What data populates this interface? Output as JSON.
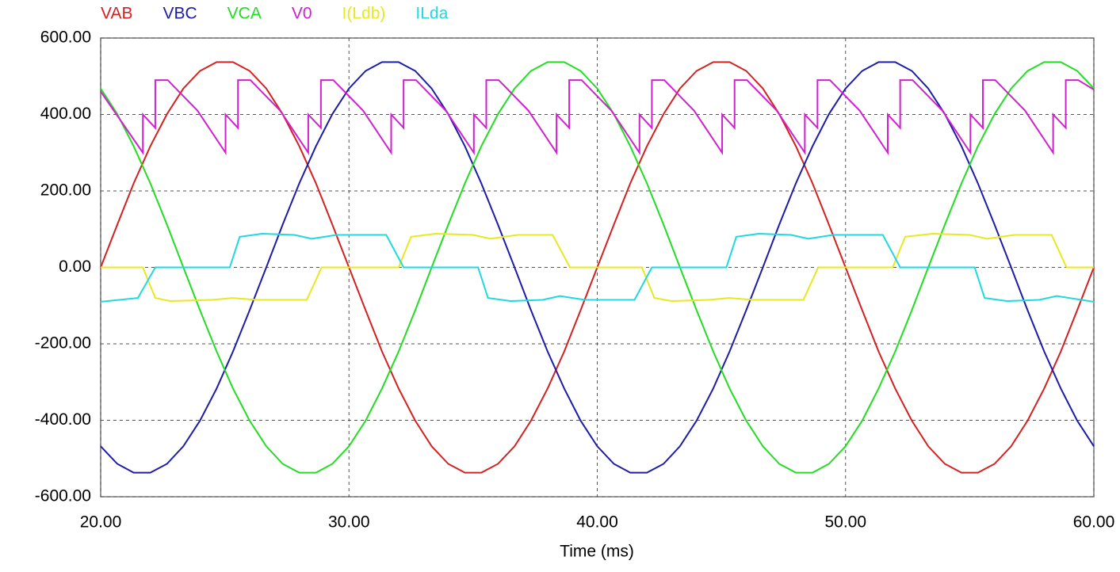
{
  "chart_data": {
    "type": "line",
    "x_label": "Time (ms)",
    "xlim": [
      20,
      60
    ],
    "ylim": [
      -600,
      600
    ],
    "xticks": [
      {
        "value": 20,
        "label": "20.00"
      },
      {
        "value": 30,
        "label": "30.00"
      },
      {
        "value": 40,
        "label": "40.00"
      },
      {
        "value": 50,
        "label": "50.00"
      },
      {
        "value": 60,
        "label": "60.00"
      }
    ],
    "yticks": [
      {
        "value": -600,
        "label": "-600.00"
      },
      {
        "value": -400,
        "label": "-400.00"
      },
      {
        "value": -200,
        "label": "-200.00"
      },
      {
        "value": 0,
        "label": "0.00"
      },
      {
        "value": 200,
        "label": "200.00"
      },
      {
        "value": 400,
        "label": "400.00"
      },
      {
        "value": 600,
        "label": "600.00"
      }
    ],
    "grid": true,
    "x": [
      20,
      20.67,
      21.33,
      22,
      22.67,
      23.33,
      24,
      24.67,
      25.33,
      26,
      26.67,
      27.33,
      28,
      28.67,
      29.33,
      30,
      30.67,
      31.33,
      32,
      32.67,
      33.33,
      34,
      34.67,
      35.33,
      36,
      36.67,
      37.33,
      38,
      38.67,
      39.33,
      40,
      40.67,
      41.33,
      42,
      42.67,
      43.33,
      44,
      44.67,
      45.33,
      46,
      46.67,
      47.33,
      48,
      48.67,
      49.33,
      50,
      50.67,
      51.33,
      52,
      52.67,
      53.33,
      54,
      54.67,
      55.33,
      56,
      56.67,
      57.33,
      58,
      58.67,
      59.33,
      60
    ],
    "series": [
      {
        "name": "VAB",
        "color": "#d42020",
        "values": [
          0,
          112,
          220,
          317,
          401,
          468,
          514,
          537,
          537,
          514,
          468,
          401,
          317,
          220,
          112,
          0,
          -112,
          -220,
          -317,
          -401,
          -468,
          -514,
          -537,
          -537,
          -514,
          -468,
          -401,
          -317,
          -220,
          -112,
          0,
          112,
          220,
          317,
          401,
          468,
          514,
          537,
          537,
          514,
          468,
          401,
          317,
          220,
          112,
          0,
          -112,
          -220,
          -317,
          -401,
          -468,
          -514,
          -537,
          -537,
          -514,
          -468,
          -401,
          -317,
          -220,
          -112,
          0
        ]
      },
      {
        "name": "VBC",
        "color": "#1c1ca8",
        "values": [
          -468,
          -514,
          -537,
          -537,
          -514,
          -468,
          -401,
          -317,
          -220,
          -112,
          0,
          112,
          220,
          317,
          401,
          468,
          514,
          537,
          537,
          514,
          468,
          401,
          317,
          220,
          112,
          0,
          -112,
          -220,
          -317,
          -401,
          -468,
          -514,
          -537,
          -537,
          -514,
          -468,
          -401,
          -317,
          -220,
          -112,
          0,
          112,
          220,
          317,
          401,
          468,
          514,
          537,
          537,
          514,
          468,
          401,
          317,
          220,
          112,
          0,
          -112,
          -220,
          -317,
          -401,
          -468
        ]
      },
      {
        "name": "VCA",
        "color": "#22dd22",
        "values": [
          468,
          401,
          317,
          220,
          112,
          0,
          -112,
          -220,
          -317,
          -401,
          -468,
          -514,
          -537,
          -537,
          -514,
          -468,
          -401,
          -317,
          -220,
          -112,
          0,
          112,
          220,
          317,
          401,
          468,
          514,
          537,
          537,
          514,
          468,
          401,
          317,
          220,
          112,
          0,
          -112,
          -220,
          -317,
          -401,
          -468,
          -514,
          -537,
          -537,
          -514,
          -468,
          -401,
          -317,
          -220,
          -112,
          0,
          112,
          220,
          317,
          401,
          468,
          514,
          537,
          537,
          514,
          468
        ]
      },
      {
        "name": "V0",
        "color": "#d020d0",
        "x": [
          20,
          21.7,
          21.7,
          22.2,
          22.2,
          22.7,
          23.9,
          25.03,
          25.03,
          25.53,
          25.53,
          26.03,
          27.23,
          28.36,
          28.36,
          28.87,
          28.87,
          29.37,
          30.57,
          31.7,
          31.7,
          32.2,
          32.2,
          32.7,
          33.9,
          35.03,
          35.03,
          35.53,
          35.53,
          36.03,
          37.23,
          38.36,
          38.36,
          38.87,
          38.87,
          39.37,
          40.57,
          41.7,
          41.7,
          42.2,
          42.2,
          42.7,
          43.9,
          45.03,
          45.03,
          45.53,
          45.53,
          46.03,
          47.23,
          48.36,
          48.36,
          48.87,
          48.87,
          49.37,
          50.57,
          51.7,
          51.7,
          52.2,
          52.2,
          52.7,
          53.9,
          55.03,
          55.03,
          55.53,
          55.53,
          56.03,
          57.23,
          58.36,
          58.36,
          58.87,
          58.87,
          59.37,
          60
        ],
        "values": [
          460,
          300,
          400,
          365,
          490,
          490,
          410,
          300,
          400,
          365,
          490,
          490,
          410,
          300,
          400,
          365,
          490,
          490,
          410,
          300,
          400,
          365,
          490,
          490,
          410,
          300,
          400,
          365,
          490,
          490,
          410,
          300,
          400,
          365,
          490,
          490,
          410,
          300,
          400,
          365,
          490,
          490,
          410,
          300,
          400,
          365,
          490,
          490,
          410,
          300,
          400,
          365,
          490,
          490,
          410,
          300,
          400,
          365,
          490,
          490,
          410,
          300,
          400,
          365,
          490,
          490,
          410,
          300,
          400,
          365,
          490,
          490,
          465
        ]
      },
      {
        "name": "I(Ldb)",
        "color": "#e8e820",
        "x": [
          20,
          21.7,
          22.2,
          22.8,
          24.5,
          25.3,
          26.3,
          28.3,
          28.9,
          32,
          32.5,
          33.5,
          35,
          35.7,
          36.8,
          38.2,
          38.9,
          41.8,
          42.3,
          43,
          44.5,
          45.3,
          46.3,
          48.3,
          48.9,
          51.9,
          52.4,
          53.5,
          55,
          55.7,
          56.8,
          58.3,
          58.9,
          60
        ],
        "values": [
          0,
          0,
          -80,
          -88,
          -85,
          -80,
          -85,
          -85,
          0,
          0,
          80,
          88,
          85,
          75,
          85,
          85,
          0,
          0,
          -80,
          -88,
          -85,
          -80,
          -85,
          -85,
          0,
          0,
          80,
          88,
          85,
          75,
          85,
          85,
          0,
          0
        ]
      },
      {
        "name": "ILda",
        "color": "#20d8e0",
        "x": [
          20,
          21.5,
          22.2,
          25.2,
          25.6,
          26.5,
          27.8,
          28.5,
          29.5,
          31.5,
          32.2,
          35.2,
          35.6,
          36.5,
          37.8,
          38.5,
          39.5,
          41.5,
          42.2,
          45.2,
          45.6,
          46.5,
          47.8,
          48.5,
          49.5,
          51.5,
          52.2,
          55.2,
          55.6,
          56.5,
          57.8,
          58.5,
          59.5,
          60
        ],
        "values": [
          -90,
          -80,
          0,
          0,
          80,
          88,
          85,
          75,
          85,
          85,
          0,
          0,
          -80,
          -88,
          -85,
          -75,
          -85,
          -85,
          0,
          0,
          80,
          88,
          85,
          75,
          85,
          85,
          0,
          0,
          -80,
          -88,
          -85,
          -75,
          -85,
          -90
        ]
      }
    ]
  }
}
